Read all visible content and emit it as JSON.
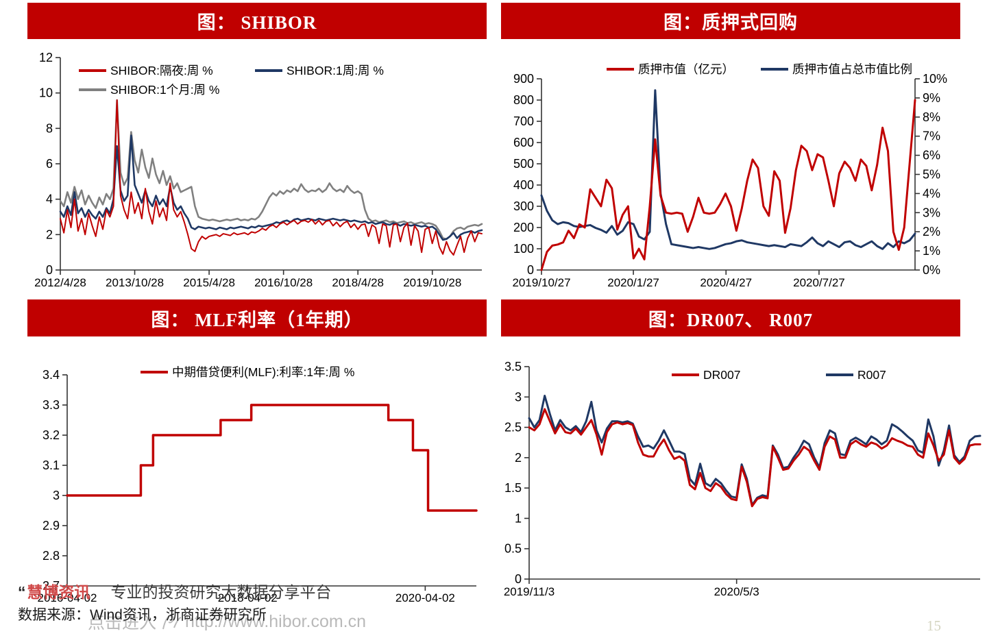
{
  "page": {
    "page_number": "15"
  },
  "colors": {
    "panel_red": "#c00000",
    "line_red": "#c00000",
    "line_navy": "#1f3864",
    "line_gray": "#808080",
    "axis": "#333333",
    "tick_text": "#000000"
  },
  "footer": {
    "quote": "“",
    "brand": "慧博资讯",
    "tagline": "专业的投资研究大数据分享平台",
    "source": "数据来源：Wind资讯，浙商证券研究所",
    "watermark_prefix": "点击进入",
    "watermark_url": "http://www.hibor.com.cn",
    "page_number": "15"
  },
  "chart_data": [
    {
      "id": "shibor",
      "type": "line",
      "title": "图： SHIBOR",
      "y_axis": {
        "min": 0,
        "max": 12,
        "tick_values": [
          0,
          2,
          4,
          6,
          8,
          10,
          12
        ],
        "tick_labels": [
          "0",
          "2",
          "4",
          "6",
          "8",
          "10",
          "12"
        ]
      },
      "x_ticks": [
        {
          "pos": 0.0,
          "label": "2012/4/28"
        },
        {
          "pos": 0.1765,
          "label": "2013/10/28"
        },
        {
          "pos": 0.353,
          "label": "2015/4/28"
        },
        {
          "pos": 0.5295,
          "label": "2016/10/28"
        },
        {
          "pos": 0.706,
          "label": "2018/4/28"
        },
        {
          "pos": 0.8825,
          "label": "2019/10/28"
        }
      ],
      "grid": false,
      "legend_position": "top-inside",
      "series": [
        {
          "name": "SHIBOR:隔夜:周 %",
          "color": "line_red",
          "width": 2.0,
          "values": [
            2.9,
            2.1,
            3.4,
            2.4,
            4.0,
            2.2,
            2.9,
            2.0,
            3.2,
            2.5,
            1.9,
            3.0,
            2.3,
            3.4,
            3.0,
            3.6,
            9.6,
            4.2,
            3.4,
            2.9,
            4.4,
            3.2,
            3.8,
            2.9,
            4.6,
            3.3,
            2.6,
            3.9,
            3.0,
            3.5,
            2.8,
            4.9,
            3.4,
            3.0,
            3.3,
            2.7,
            2.0,
            1.2,
            1.05,
            1.6,
            1.9,
            1.75,
            1.9,
            1.95,
            2.0,
            1.9,
            2.05,
            2.0,
            1.95,
            2.1,
            2.0,
            2.05,
            2.1,
            2.0,
            2.15,
            2.1,
            2.2,
            2.35,
            2.25,
            2.45,
            2.55,
            2.4,
            2.6,
            2.7,
            2.55,
            2.7,
            2.8,
            2.6,
            2.75,
            2.8,
            2.7,
            2.85,
            2.6,
            2.8,
            2.55,
            2.75,
            2.8,
            2.5,
            2.7,
            2.45,
            2.65,
            2.75,
            2.4,
            2.6,
            2.3,
            2.55,
            2.6,
            1.9,
            2.55,
            2.4,
            1.5,
            2.6,
            2.5,
            1.3,
            2.55,
            2.6,
            1.6,
            2.4,
            2.65,
            1.4,
            2.5,
            2.2,
            1.0,
            2.3,
            2.4,
            1.5,
            2.2,
            1.3,
            0.9,
            1.6,
            1.1,
            0.85,
            1.4,
            1.9,
            1.0,
            1.8,
            2.2,
            1.6,
            2.1,
            2.05
          ]
        },
        {
          "name": "SHIBOR:1周:周 %",
          "color": "line_navy",
          "width": 2.6,
          "values": [
            3.3,
            3.0,
            3.6,
            3.1,
            4.4,
            3.2,
            3.5,
            3.0,
            3.4,
            3.1,
            2.9,
            3.3,
            3.0,
            3.5,
            3.2,
            4.0,
            7.0,
            4.5,
            3.9,
            4.2,
            7.6,
            4.8,
            4.3,
            3.8,
            4.5,
            3.9,
            3.6,
            4.2,
            3.7,
            4.0,
            3.6,
            4.7,
            3.8,
            3.4,
            3.6,
            3.2,
            2.9,
            2.4,
            2.3,
            2.45,
            2.4,
            2.35,
            2.4,
            2.35,
            2.3,
            2.4,
            2.35,
            2.3,
            2.4,
            2.35,
            2.4,
            2.45,
            2.4,
            2.35,
            2.45,
            2.4,
            2.5,
            2.45,
            2.5,
            2.55,
            2.6,
            2.7,
            2.65,
            2.75,
            2.8,
            2.7,
            2.85,
            2.9,
            2.8,
            2.85,
            2.9,
            2.85,
            2.8,
            2.9,
            2.85,
            2.8,
            2.85,
            2.9,
            2.85,
            2.8,
            2.85,
            2.8,
            2.75,
            2.8,
            2.75,
            2.7,
            2.75,
            2.65,
            2.7,
            2.6,
            2.65,
            2.7,
            2.6,
            2.55,
            2.65,
            2.6,
            2.5,
            2.6,
            2.55,
            2.5,
            2.55,
            2.5,
            2.45,
            2.5,
            2.4,
            2.45,
            2.3,
            2.0,
            1.7,
            1.75,
            1.9,
            2.1,
            1.8,
            2.0,
            2.1,
            2.15,
            2.2,
            2.1,
            2.2,
            2.25
          ]
        },
        {
          "name": "SHIBOR:1个月:周 %",
          "color": "line_gray",
          "width": 2.6,
          "values": [
            3.9,
            3.6,
            4.4,
            3.8,
            4.7,
            4.0,
            4.5,
            3.7,
            4.2,
            3.8,
            3.5,
            4.1,
            3.7,
            4.3,
            4.0,
            4.6,
            9.6,
            5.5,
            4.8,
            5.2,
            7.8,
            6.2,
            5.5,
            6.8,
            5.8,
            5.2,
            6.3,
            5.4,
            4.9,
            5.6,
            4.8,
            5.3,
            4.6,
            4.9,
            4.4,
            4.5,
            4.6,
            4.7,
            3.6,
            3.0,
            2.9,
            2.85,
            2.8,
            2.85,
            2.8,
            2.75,
            2.8,
            2.85,
            2.8,
            2.85,
            2.9,
            2.8,
            2.85,
            2.8,
            2.9,
            2.85,
            3.0,
            3.3,
            3.7,
            4.1,
            4.35,
            4.2,
            4.45,
            4.3,
            4.5,
            4.4,
            4.6,
            4.45,
            4.85,
            4.55,
            4.4,
            4.5,
            4.45,
            4.6,
            4.4,
            4.55,
            4.9,
            4.6,
            4.45,
            4.55,
            4.4,
            4.75,
            4.5,
            4.35,
            4.45,
            4.3,
            3.4,
            2.9,
            2.75,
            2.8,
            2.7,
            2.75,
            2.8,
            2.7,
            2.75,
            2.65,
            2.7,
            2.75,
            2.65,
            2.7,
            2.6,
            2.65,
            2.7,
            2.6,
            2.65,
            2.6,
            2.5,
            2.2,
            1.8,
            1.75,
            1.9,
            2.2,
            2.35,
            2.4,
            2.3,
            2.45,
            2.5,
            2.55,
            2.5,
            2.6
          ]
        }
      ]
    },
    {
      "id": "pledge",
      "type": "line",
      "title": "图：质押式回购",
      "y_axis": {
        "min": 0,
        "max": 900,
        "tick_values": [
          0,
          100,
          200,
          300,
          400,
          500,
          600,
          700,
          800,
          900
        ],
        "tick_labels": [
          "0",
          "100",
          "200",
          "300",
          "400",
          "500",
          "600",
          "700",
          "800",
          "900"
        ]
      },
      "y2_axis": {
        "min": 0,
        "max": 10,
        "tick_values": [
          0,
          1,
          2,
          3,
          4,
          5,
          6,
          7,
          8,
          9,
          10
        ],
        "tick_labels": [
          "0%",
          "1%",
          "2%",
          "3%",
          "4%",
          "5%",
          "6%",
          "7%",
          "8%",
          "9%",
          "10%"
        ]
      },
      "x_ticks": [
        {
          "pos": 0.0,
          "label": "2019/10/27"
        },
        {
          "pos": 0.246,
          "label": "2020/1/27"
        },
        {
          "pos": 0.494,
          "label": "2020/4/27"
        },
        {
          "pos": 0.743,
          "label": "2020/7/27"
        }
      ],
      "grid": false,
      "legend_position": "top-inside",
      "series": [
        {
          "name": "质押市值（亿元）",
          "color": "line_red",
          "width": 3.0,
          "axis": "left",
          "values": [
            0,
            85,
            115,
            120,
            130,
            185,
            150,
            215,
            200,
            380,
            340,
            300,
            425,
            385,
            190,
            260,
            300,
            55,
            100,
            50,
            300,
            615,
            350,
            270,
            265,
            270,
            265,
            180,
            250,
            340,
            270,
            265,
            270,
            310,
            360,
            300,
            185,
            290,
            420,
            520,
            480,
            300,
            255,
            465,
            420,
            175,
            290,
            470,
            585,
            560,
            470,
            545,
            530,
            420,
            300,
            455,
            510,
            480,
            420,
            520,
            490,
            375,
            495,
            670,
            560,
            180,
            95,
            200,
            500,
            800
          ]
        },
        {
          "name": "质押市值占总市值比例",
          "color": "line_navy",
          "width": 3.0,
          "axis": "right",
          "values": [
            3.9,
            3.1,
            2.6,
            2.4,
            2.5,
            2.45,
            2.3,
            2.25,
            2.3,
            2.35,
            2.2,
            2.1,
            1.95,
            2.3,
            1.85,
            2.05,
            2.5,
            2.4,
            1.75,
            1.6,
            2.0,
            9.4,
            4.0,
            2.4,
            1.35,
            1.3,
            1.25,
            1.2,
            1.15,
            1.2,
            1.15,
            1.1,
            1.15,
            1.25,
            1.35,
            1.4,
            1.5,
            1.55,
            1.45,
            1.4,
            1.35,
            1.3,
            1.25,
            1.3,
            1.25,
            1.2,
            1.35,
            1.3,
            1.25,
            1.45,
            1.7,
            1.4,
            1.25,
            1.5,
            1.35,
            1.2,
            1.45,
            1.5,
            1.3,
            1.2,
            1.35,
            1.5,
            1.25,
            1.1,
            1.4,
            1.2,
            1.5,
            1.4,
            1.55,
            1.9
          ]
        }
      ]
    },
    {
      "id": "mlf",
      "type": "line",
      "title": "图： MLF利率（1年期）",
      "y_axis": {
        "min": 2.7,
        "max": 3.4,
        "tick_values": [
          2.7,
          2.8,
          2.9,
          3.0,
          3.1,
          3.2,
          3.3,
          3.4
        ],
        "tick_labels": [
          "2.7",
          "2.8",
          "2.9",
          "3",
          "3.1",
          "3.2",
          "3.3",
          "3.4"
        ]
      },
      "x_ticks": [
        {
          "pos": 0.0,
          "label": "2016-04-02"
        },
        {
          "pos": 0.441,
          "label": "2018-04-02"
        },
        {
          "pos": 0.875,
          "label": "2020-04-02"
        }
      ],
      "grid": false,
      "legend_position": "top-inside",
      "series": [
        {
          "name": "中期借贷便利(MLF):利率:1年:周 %",
          "color": "line_red",
          "width": 3.5,
          "points": [
            [
              0,
              3.0
            ],
            [
              0.18,
              3.0
            ],
            [
              0.18,
              3.1
            ],
            [
              0.21,
              3.1
            ],
            [
              0.21,
              3.2
            ],
            [
              0.375,
              3.2
            ],
            [
              0.375,
              3.25
            ],
            [
              0.45,
              3.25
            ],
            [
              0.45,
              3.3
            ],
            [
              0.785,
              3.3
            ],
            [
              0.785,
              3.25
            ],
            [
              0.845,
              3.25
            ],
            [
              0.845,
              3.15
            ],
            [
              0.882,
              3.15
            ],
            [
              0.882,
              2.95
            ],
            [
              1,
              2.95
            ]
          ]
        }
      ]
    },
    {
      "id": "dr007",
      "type": "line",
      "title": "图：DR007、 R007",
      "y_axis": {
        "min": 0,
        "max": 3.5,
        "tick_values": [
          0,
          0.5,
          1,
          1.5,
          2,
          2.5,
          3,
          3.5
        ],
        "tick_labels": [
          "0",
          "0.5",
          "1",
          "1.5",
          "2",
          "2.5",
          "3",
          "3.5"
        ]
      },
      "x_ticks": [
        {
          "pos": 0.0,
          "label": "2019/11/3"
        },
        {
          "pos": 0.46,
          "label": "2020/5/3"
        }
      ],
      "grid": false,
      "legend_position": "top-inside",
      "series": [
        {
          "name": "DR007",
          "color": "line_red",
          "width": 3.0,
          "values": [
            2.5,
            2.45,
            2.55,
            2.8,
            2.6,
            2.4,
            2.55,
            2.42,
            2.4,
            2.48,
            2.38,
            2.5,
            2.62,
            2.38,
            2.05,
            2.42,
            2.55,
            2.58,
            2.55,
            2.57,
            2.54,
            2.25,
            2.05,
            2.02,
            2.02,
            2.18,
            2.3,
            2.12,
            1.98,
            2.02,
            1.95,
            1.55,
            1.48,
            1.75,
            1.5,
            1.45,
            1.58,
            1.52,
            1.4,
            1.32,
            1.3,
            1.85,
            1.6,
            1.2,
            1.32,
            1.35,
            1.33,
            2.18,
            2.0,
            1.8,
            1.82,
            1.95,
            2.05,
            2.18,
            2.12,
            1.95,
            1.8,
            2.18,
            2.35,
            2.3,
            2.0,
            2.0,
            2.22,
            2.28,
            2.22,
            2.18,
            2.25,
            2.22,
            2.15,
            2.2,
            2.32,
            2.28,
            2.25,
            2.2,
            2.18,
            2.05,
            2.0,
            2.4,
            2.2,
            1.95,
            2.05,
            2.45,
            2.0,
            1.9,
            1.98,
            2.2,
            2.22,
            2.22
          ]
        },
        {
          "name": "R007",
          "color": "line_navy",
          "width": 3.0,
          "values": [
            2.65,
            2.5,
            2.62,
            3.02,
            2.72,
            2.45,
            2.62,
            2.5,
            2.45,
            2.52,
            2.42,
            2.6,
            2.92,
            2.45,
            2.25,
            2.48,
            2.6,
            2.6,
            2.58,
            2.6,
            2.56,
            2.35,
            2.18,
            2.2,
            2.15,
            2.28,
            2.45,
            2.28,
            2.1,
            2.1,
            2.06,
            1.65,
            1.55,
            1.9,
            1.58,
            1.53,
            1.65,
            1.58,
            1.46,
            1.36,
            1.34,
            1.89,
            1.65,
            1.22,
            1.34,
            1.38,
            1.36,
            2.2,
            2.05,
            1.83,
            1.85,
            2.0,
            2.12,
            2.28,
            2.22,
            2.0,
            1.84,
            2.24,
            2.45,
            2.4,
            2.06,
            2.04,
            2.28,
            2.33,
            2.28,
            2.22,
            2.35,
            2.3,
            2.22,
            2.28,
            2.55,
            2.5,
            2.43,
            2.35,
            2.28,
            2.12,
            2.08,
            2.63,
            2.35,
            1.87,
            2.12,
            2.53,
            2.04,
            1.93,
            2.02,
            2.28,
            2.35,
            2.36
          ]
        }
      ]
    }
  ]
}
